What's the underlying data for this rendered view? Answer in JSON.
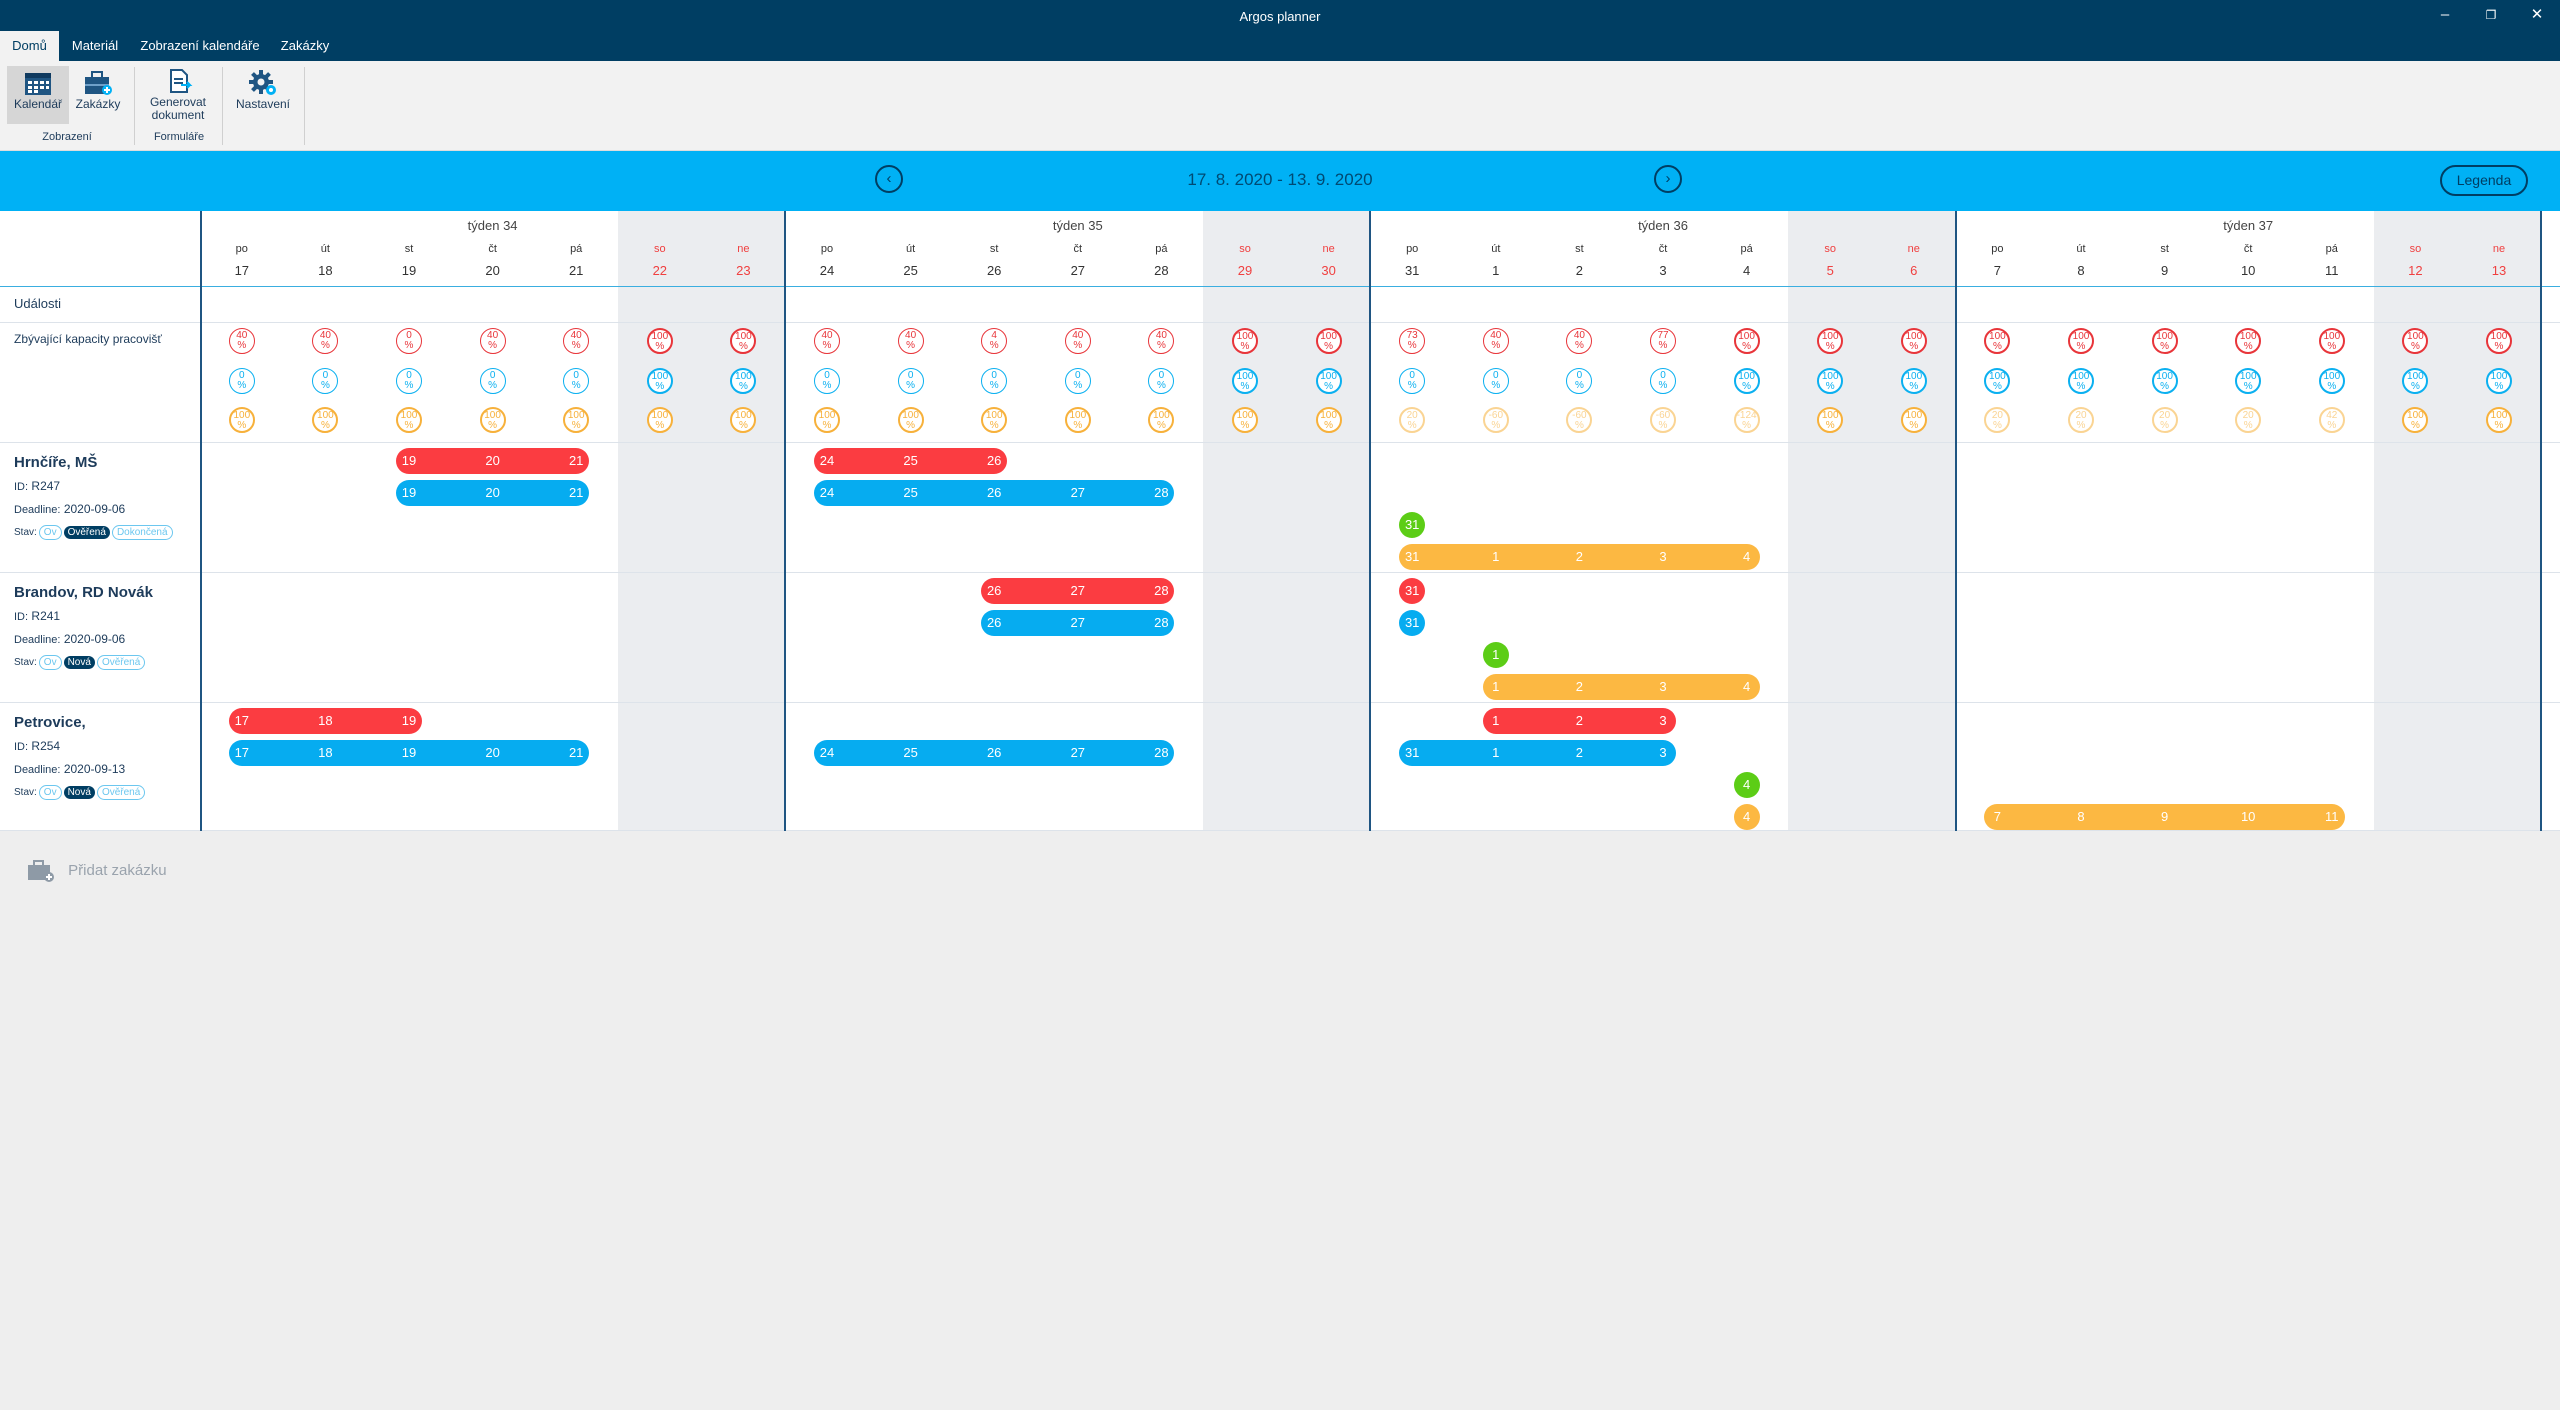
{
  "window": {
    "title": "Argos planner",
    "minimize": "–",
    "restore": "❐",
    "close": "✕"
  },
  "menu_tabs": [
    "Domů",
    "Materiál",
    "Zobrazení kalendáře",
    "Zakázky"
  ],
  "ribbon": {
    "groups": [
      {
        "label": "Zobrazení",
        "buttons": [
          {
            "label": "Kalendář",
            "icon": "calendar-icon",
            "active": true
          },
          {
            "label": "Zakázky",
            "icon": "briefcase-icon",
            "active": false
          }
        ]
      },
      {
        "label": "Formuláře",
        "buttons": [
          {
            "label": "Generovat dokument",
            "icon": "document-icon",
            "active": false
          }
        ]
      },
      {
        "label": "",
        "buttons": [
          {
            "label": "Nastavení",
            "icon": "gear-icon",
            "active": false
          }
        ]
      }
    ]
  },
  "nav": {
    "date_range": "17. 8. 2020 - 13. 9. 2020",
    "prev": "‹",
    "next": "›",
    "legend": "Legenda"
  },
  "calendar": {
    "weeks": [
      "týden 34",
      "týden 35",
      "týden 36",
      "týden 37"
    ],
    "day_names": [
      "po",
      "út",
      "st",
      "čt",
      "pá",
      "so",
      "ne"
    ],
    "days": [
      17,
      18,
      19,
      20,
      21,
      22,
      23,
      24,
      25,
      26,
      27,
      28,
      29,
      30,
      31,
      1,
      2,
      3,
      4,
      5,
      6,
      7,
      8,
      9,
      10,
      11,
      12,
      13
    ]
  },
  "rows": {
    "events": "Události",
    "capacity": "Zbývající kapacity pracovišť"
  },
  "capacity": {
    "red": [
      40,
      40,
      0,
      40,
      40,
      100,
      100,
      40,
      40,
      4,
      40,
      40,
      100,
      100,
      73,
      40,
      40,
      77,
      100,
      100,
      100,
      100,
      100,
      100,
      100,
      100,
      100,
      100
    ],
    "blue": [
      0,
      0,
      0,
      0,
      0,
      100,
      100,
      0,
      0,
      0,
      0,
      0,
      100,
      100,
      0,
      0,
      0,
      0,
      100,
      100,
      100,
      100,
      100,
      100,
      100,
      100,
      100,
      100
    ],
    "orange": [
      100,
      100,
      100,
      100,
      100,
      100,
      100,
      100,
      100,
      100,
      100,
      100,
      100,
      100,
      20,
      -60,
      -60,
      -60,
      -124,
      100,
      100,
      20,
      20,
      20,
      20,
      42,
      100,
      100
    ],
    "unit": "%"
  },
  "orders": [
    {
      "name": "Hrnčíře, MŠ",
      "id_label": "ID:",
      "id": "R247",
      "deadline_label": "Deadline:",
      "deadline": "2020-09-06",
      "status_label": "Stav:",
      "statuses": [
        {
          "text": "Ov",
          "on": false
        },
        {
          "text": "Ověřená",
          "on": true
        },
        {
          "text": "Dokončená",
          "on": false
        }
      ],
      "bars": [
        {
          "color": "red",
          "lane": 0,
          "start": 2,
          "end": 4
        },
        {
          "color": "red",
          "lane": 0,
          "start": 7,
          "end": 9
        },
        {
          "color": "blue",
          "lane": 1,
          "start": 2,
          "end": 4
        },
        {
          "color": "blue",
          "lane": 1,
          "start": 7,
          "end": 11
        },
        {
          "color": "green",
          "lane": 2,
          "start": 14,
          "end": 14
        },
        {
          "color": "orange",
          "lane": 3,
          "start": 14,
          "end": 18
        }
      ]
    },
    {
      "name": "Brandov, RD Novák",
      "id_label": "ID:",
      "id": "R241",
      "deadline_label": "Deadline:",
      "deadline": "2020-09-06",
      "status_label": "Stav:",
      "statuses": [
        {
          "text": "Ov",
          "on": false
        },
        {
          "text": "Nová",
          "on": true
        },
        {
          "text": "Ověřená",
          "on": false
        }
      ],
      "bars": [
        {
          "color": "red",
          "lane": 0,
          "start": 9,
          "end": 11
        },
        {
          "color": "red",
          "lane": 0,
          "start": 14,
          "end": 14
        },
        {
          "color": "blue",
          "lane": 1,
          "start": 9,
          "end": 11
        },
        {
          "color": "blue",
          "lane": 1,
          "start": 14,
          "end": 14
        },
        {
          "color": "green",
          "lane": 2,
          "start": 15,
          "end": 15
        },
        {
          "color": "orange",
          "lane": 3,
          "start": 15,
          "end": 18
        }
      ]
    },
    {
      "name": "Petrovice,",
      "id_label": "ID:",
      "id": "R254",
      "deadline_label": "Deadline:",
      "deadline": "2020-09-13",
      "status_label": "Stav:",
      "statuses": [
        {
          "text": "Ov",
          "on": false
        },
        {
          "text": "Nová",
          "on": true
        },
        {
          "text": "Ověřená",
          "on": false
        }
      ],
      "bars": [
        {
          "color": "red",
          "lane": 0,
          "start": 0,
          "end": 2
        },
        {
          "color": "red",
          "lane": 0,
          "start": 15,
          "end": 17
        },
        {
          "color": "blue",
          "lane": 1,
          "start": 0,
          "end": 4
        },
        {
          "color": "blue",
          "lane": 1,
          "start": 7,
          "end": 11
        },
        {
          "color": "blue",
          "lane": 1,
          "start": 14,
          "end": 17
        },
        {
          "color": "green",
          "lane": 2,
          "start": 18,
          "end": 18
        },
        {
          "color": "orange",
          "lane": 3,
          "start": 18,
          "end": 18
        },
        {
          "color": "orange",
          "lane": 3,
          "start": 21,
          "end": 25
        }
      ]
    }
  ],
  "footer": {
    "add_order": "Přidat zakázku"
  }
}
